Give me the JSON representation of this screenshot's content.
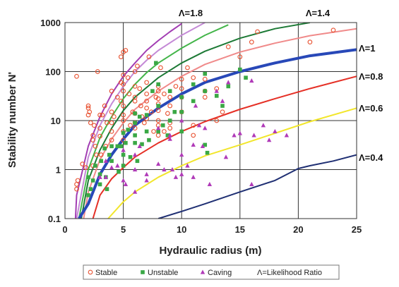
{
  "chart_data": {
    "type": "scatter",
    "title": "",
    "xlabel": "Hydraulic radius (m)",
    "ylabel": "Stability number N'",
    "xlim": [
      0,
      25
    ],
    "ylim": [
      0.1,
      1000
    ],
    "yscale": "log",
    "xticks": [
      "0",
      "5",
      "10",
      "15",
      "20",
      "25"
    ],
    "yticks": [
      "0.1",
      "1",
      "10",
      "100",
      "1000"
    ],
    "grid": true,
    "legend": {
      "position": "bottom",
      "entries": [
        {
          "name": "Stable",
          "marker": "open-circle",
          "color": "#e8502f"
        },
        {
          "name": "Unstable",
          "marker": "filled-square",
          "color": "#3aa845"
        },
        {
          "name": "Caving",
          "marker": "filled-triangle",
          "color": "#b03ab8"
        },
        {
          "name": "Λ=Likelihood Ratio",
          "marker": "none",
          "color": "#222222"
        }
      ]
    },
    "curves": [
      {
        "label": "Λ=1.8",
        "color": "#a23db3",
        "width": 2,
        "points": [
          [
            0.9,
            0.1
          ],
          [
            1,
            0.3
          ],
          [
            2,
            3
          ],
          [
            3,
            12
          ],
          [
            4,
            35
          ],
          [
            5,
            80
          ],
          [
            6,
            150
          ],
          [
            7,
            270
          ],
          [
            8,
            430
          ],
          [
            9,
            650
          ],
          [
            10,
            950
          ]
        ]
      },
      {
        "label": "",
        "color": "#c48ad6",
        "width": 2,
        "points": [
          [
            1,
            0.1
          ],
          [
            2,
            1.8
          ],
          [
            3,
            8
          ],
          [
            4,
            22
          ],
          [
            5,
            50
          ],
          [
            6,
            100
          ],
          [
            7,
            170
          ],
          [
            8,
            270
          ],
          [
            10,
            550
          ],
          [
            12,
            1000
          ]
        ]
      },
      {
        "label": "",
        "color": "#43b549",
        "width": 2,
        "points": [
          [
            1.2,
            0.1
          ],
          [
            2,
            1
          ],
          [
            3,
            4.5
          ],
          [
            4,
            12
          ],
          [
            5,
            28
          ],
          [
            6,
            55
          ],
          [
            7,
            95
          ],
          [
            8,
            150
          ],
          [
            10,
            300
          ],
          [
            12,
            550
          ],
          [
            14,
            900
          ]
        ]
      },
      {
        "label": "Λ=1.4",
        "color": "#1d7a36",
        "width": 2,
        "points": [
          [
            1.4,
            0.1
          ],
          [
            2,
            0.6
          ],
          [
            3,
            2.5
          ],
          [
            4,
            7
          ],
          [
            5,
            16
          ],
          [
            6,
            30
          ],
          [
            8,
            75
          ],
          [
            10,
            150
          ],
          [
            12,
            260
          ],
          [
            15,
            480
          ],
          [
            18,
            750
          ],
          [
            21,
            1000
          ]
        ]
      },
      {
        "label": "",
        "color": "#f08a8a",
        "width": 2,
        "points": [
          [
            1.6,
            0.1
          ],
          [
            2,
            0.35
          ],
          [
            3,
            1.6
          ],
          [
            4,
            4.2
          ],
          [
            5,
            9
          ],
          [
            6,
            17
          ],
          [
            8,
            40
          ],
          [
            10,
            80
          ],
          [
            12,
            140
          ],
          [
            15,
            250
          ],
          [
            18,
            380
          ],
          [
            21,
            540
          ],
          [
            25,
            750
          ]
        ]
      },
      {
        "label": "Λ=1",
        "color": "#2848b8",
        "width": 4,
        "points": [
          [
            1.2,
            0.1
          ],
          [
            2,
            0.2
          ],
          [
            3,
            0.8
          ],
          [
            4,
            2
          ],
          [
            5,
            4.2
          ],
          [
            6,
            8
          ],
          [
            8,
            18
          ],
          [
            10,
            35
          ],
          [
            12,
            60
          ],
          [
            15,
            100
          ],
          [
            18,
            150
          ],
          [
            21,
            210
          ],
          [
            25,
            280
          ]
        ]
      },
      {
        "label": "Λ=0.8",
        "color": "#e53026",
        "width": 2,
        "points": [
          [
            2.4,
            0.1
          ],
          [
            3,
            0.3
          ],
          [
            4,
            0.65
          ],
          [
            5,
            1.1
          ],
          [
            6,
            1.8
          ],
          [
            8,
            3.5
          ],
          [
            10,
            6
          ],
          [
            12,
            9.5
          ],
          [
            15,
            17
          ],
          [
            18,
            28
          ],
          [
            21,
            45
          ],
          [
            25,
            80
          ]
        ]
      },
      {
        "label": "Λ=0.6",
        "color": "#f2e62c",
        "width": 2,
        "points": [
          [
            3.7,
            0.1
          ],
          [
            5,
            0.22
          ],
          [
            6,
            0.35
          ],
          [
            8,
            0.7
          ],
          [
            10,
            1.2
          ],
          [
            12,
            1.9
          ],
          [
            15,
            3.2
          ],
          [
            18,
            5.5
          ],
          [
            21,
            9.5
          ],
          [
            25,
            18
          ]
        ]
      },
      {
        "label": "Λ=0.4",
        "color": "#1f2f73",
        "width": 2,
        "points": [
          [
            8,
            0.1
          ],
          [
            10,
            0.14
          ],
          [
            12,
            0.2
          ],
          [
            15,
            0.35
          ],
          [
            18,
            0.6
          ],
          [
            20,
            1.05
          ],
          [
            21,
            1.2
          ],
          [
            23,
            1.5
          ],
          [
            25,
            2
          ]
        ]
      }
    ],
    "series": [
      {
        "name": "Stable",
        "marker": "open-circle",
        "color": "#e8502f",
        "points": [
          [
            1,
            80
          ],
          [
            1,
            0.5
          ],
          [
            1,
            0.4
          ],
          [
            1.1,
            0.6
          ],
          [
            1.5,
            1.3
          ],
          [
            1.8,
            1.1
          ],
          [
            2,
            13
          ],
          [
            2,
            20
          ],
          [
            2,
            18
          ],
          [
            2.1,
            15
          ],
          [
            2.2,
            9
          ],
          [
            2.4,
            5
          ],
          [
            2.4,
            1.2
          ],
          [
            2.4,
            4
          ],
          [
            2.5,
            8
          ],
          [
            2.6,
            3
          ],
          [
            2.7,
            2
          ],
          [
            2.8,
            100
          ],
          [
            3,
            13
          ],
          [
            3,
            7
          ],
          [
            3,
            4.8
          ],
          [
            3.1,
            2
          ],
          [
            3.2,
            13
          ],
          [
            3.4,
            20
          ],
          [
            3.5,
            3
          ],
          [
            3.6,
            9
          ],
          [
            4,
            40
          ],
          [
            4,
            15
          ],
          [
            4,
            9
          ],
          [
            4,
            6
          ],
          [
            4,
            4
          ],
          [
            4.2,
            12
          ],
          [
            4.5,
            30
          ],
          [
            4.8,
            25
          ],
          [
            4.8,
            60
          ],
          [
            4.8,
            200
          ],
          [
            5,
            250
          ],
          [
            5,
            55
          ],
          [
            5,
            85
          ],
          [
            5,
            40
          ],
          [
            5,
            20
          ],
          [
            5,
            13
          ],
          [
            5,
            10
          ],
          [
            5,
            6
          ],
          [
            5,
            4
          ],
          [
            5.2,
            270
          ],
          [
            5.4,
            75
          ],
          [
            5.5,
            35
          ],
          [
            5.6,
            8
          ],
          [
            5.8,
            15
          ],
          [
            6,
            100
          ],
          [
            6,
            50
          ],
          [
            6,
            30
          ],
          [
            6,
            25
          ],
          [
            6,
            14
          ],
          [
            6,
            9
          ],
          [
            6,
            7
          ],
          [
            6.2,
            130
          ],
          [
            6.4,
            45
          ],
          [
            6.5,
            20
          ],
          [
            6.6,
            12
          ],
          [
            6.8,
            9
          ],
          [
            7,
            60
          ],
          [
            7,
            35
          ],
          [
            7,
            25
          ],
          [
            7,
            18
          ],
          [
            7,
            11
          ],
          [
            7.2,
            200
          ],
          [
            7.4,
            15
          ],
          [
            7.6,
            6
          ],
          [
            7.8,
            30
          ],
          [
            8,
            50
          ],
          [
            8,
            40
          ],
          [
            8,
            28
          ],
          [
            8,
            22
          ],
          [
            8,
            16
          ],
          [
            8,
            10
          ],
          [
            8,
            8
          ],
          [
            8,
            5
          ],
          [
            8.2,
            120
          ],
          [
            8.5,
            35
          ],
          [
            8.5,
            6
          ],
          [
            8.8,
            14
          ],
          [
            9,
            30
          ],
          [
            9,
            20
          ],
          [
            9,
            9
          ],
          [
            9,
            7
          ],
          [
            9.5,
            50
          ],
          [
            10,
            70
          ],
          [
            10,
            30
          ],
          [
            10,
            45
          ],
          [
            10,
            15
          ],
          [
            10.5,
            120
          ],
          [
            11,
            75
          ],
          [
            11,
            8
          ],
          [
            11,
            5
          ],
          [
            12,
            70
          ],
          [
            12,
            40
          ],
          [
            12,
            30
          ],
          [
            13,
            45
          ],
          [
            13,
            10
          ],
          [
            13.5,
            15
          ],
          [
            14,
            320
          ],
          [
            15,
            200
          ],
          [
            16,
            400
          ],
          [
            16.5,
            650
          ],
          [
            21,
            400
          ],
          [
            23,
            700
          ]
        ]
      },
      {
        "name": "Unstable",
        "marker": "filled-square",
        "color": "#3aa845",
        "points": [
          [
            2,
            0.7
          ],
          [
            2,
            0.3
          ],
          [
            2.2,
            0.4
          ],
          [
            2.4,
            0.6
          ],
          [
            2.6,
            1.2
          ],
          [
            3,
            0.8
          ],
          [
            3,
            0.5
          ],
          [
            3.1,
            1.5
          ],
          [
            3.4,
            2.7
          ],
          [
            3.5,
            0.7
          ],
          [
            3.6,
            0.4
          ],
          [
            3.8,
            2
          ],
          [
            4,
            3
          ],
          [
            4,
            1.5
          ],
          [
            4.5,
            3
          ],
          [
            4.6,
            0.9
          ],
          [
            4.8,
            3
          ],
          [
            5,
            5.6
          ],
          [
            5,
            2
          ],
          [
            5,
            1.2
          ],
          [
            5.2,
            3.5
          ],
          [
            5.4,
            6.5
          ],
          [
            5.6,
            1.8
          ],
          [
            6,
            14
          ],
          [
            6,
            9
          ],
          [
            6,
            5
          ],
          [
            6,
            3.5
          ],
          [
            6.2,
            1.5
          ],
          [
            6.4,
            12
          ],
          [
            6.6,
            3.3
          ],
          [
            7,
            6
          ],
          [
            7,
            13
          ],
          [
            7.2,
            4
          ],
          [
            7.5,
            40
          ],
          [
            7.8,
            150
          ],
          [
            8,
            55
          ],
          [
            8,
            20
          ],
          [
            8,
            6
          ],
          [
            8.4,
            8
          ],
          [
            8.8,
            5
          ],
          [
            9,
            40
          ],
          [
            9,
            10
          ],
          [
            9.4,
            15
          ],
          [
            10,
            30
          ],
          [
            10,
            15
          ],
          [
            10,
            6
          ],
          [
            11,
            55
          ],
          [
            11,
            25
          ],
          [
            12,
            90
          ],
          [
            12,
            40
          ],
          [
            12,
            3.2
          ],
          [
            12.2,
            2.2
          ],
          [
            13,
            32
          ],
          [
            13.5,
            20
          ],
          [
            14,
            50
          ],
          [
            15,
            110
          ],
          [
            15.5,
            75
          ]
        ]
      },
      {
        "name": "Caving",
        "marker": "filled-triangle",
        "color": "#b03ab8",
        "points": [
          [
            3,
            0.7
          ],
          [
            3.5,
            1.5
          ],
          [
            3.5,
            0.7
          ],
          [
            4,
            1.1
          ],
          [
            4.5,
            1.2
          ],
          [
            5,
            2.5
          ],
          [
            5,
            0.6
          ],
          [
            5.2,
            0.5
          ],
          [
            6,
            2
          ],
          [
            6,
            1
          ],
          [
            6,
            0.35
          ],
          [
            6.4,
            3
          ],
          [
            7,
            0.8
          ],
          [
            7,
            0.6
          ],
          [
            8,
            7
          ],
          [
            8,
            1.3
          ],
          [
            8.5,
            1
          ],
          [
            9,
            5
          ],
          [
            9,
            4.2
          ],
          [
            9.2,
            1
          ],
          [
            9.5,
            0.7
          ],
          [
            10,
            10
          ],
          [
            10,
            2
          ],
          [
            10,
            0.8
          ],
          [
            10.5,
            1.2
          ],
          [
            11,
            3.2
          ],
          [
            11,
            0.7
          ],
          [
            11.2,
            20
          ],
          [
            11.5,
            8
          ],
          [
            11.8,
            3
          ],
          [
            12,
            7
          ],
          [
            12.4,
            0.5
          ],
          [
            13,
            40
          ],
          [
            13.5,
            25
          ],
          [
            13.8,
            1.8
          ],
          [
            14,
            60
          ],
          [
            14.5,
            5
          ],
          [
            15,
            5.5
          ],
          [
            16,
            65
          ],
          [
            16,
            0.5
          ],
          [
            16.2,
            5
          ],
          [
            17,
            8
          ],
          [
            17.5,
            4
          ],
          [
            18,
            6
          ],
          [
            19,
            5
          ]
        ]
      }
    ]
  }
}
